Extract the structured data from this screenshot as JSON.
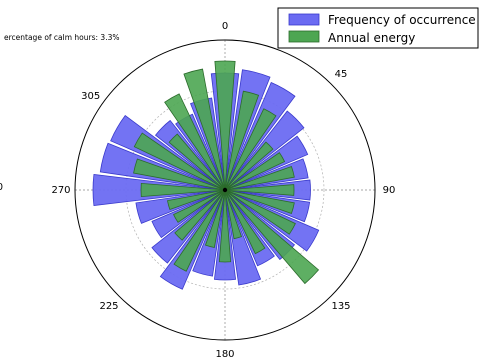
{
  "chart_data": {
    "type": "polar-bar",
    "note_text": "ercentage of calm hours: 3.3%",
    "left_edge_fragment": "0",
    "angle_ticks": [
      {
        "deg": 0,
        "label": "0"
      },
      {
        "deg": 45,
        "label": "45"
      },
      {
        "deg": 90,
        "label": "90"
      },
      {
        "deg": 135,
        "label": "135"
      },
      {
        "deg": 180,
        "label": "180"
      },
      {
        "deg": 225,
        "label": "225"
      },
      {
        "deg": 270,
        "label": "270"
      },
      {
        "deg": 305,
        "label": "305"
      }
    ],
    "sector_count": 24,
    "sector_step_deg": 15,
    "rmax": 1.0,
    "grid_rings": [
      0.33,
      0.66
    ],
    "grid": true,
    "legend_position": "top-right",
    "series": [
      {
        "name": "Frequency of occurrence",
        "color": "#6b6bf2",
        "edge": "#3a3acc",
        "width_deg": 13.5,
        "values": [
          0.78,
          0.81,
          0.78,
          0.67,
          0.6,
          0.56,
          0.57,
          0.57,
          0.68,
          0.59,
          0.55,
          0.64,
          0.6,
          0.58,
          0.72,
          0.62,
          0.53,
          0.6,
          0.88,
          0.84,
          0.83,
          0.59,
          0.55,
          0.62
        ]
      },
      {
        "name": "Annual energy",
        "color": "#4da652",
        "edge": "#2b6b2b",
        "width_deg": 9,
        "values": [
          0.86,
          0.67,
          0.6,
          0.42,
          0.44,
          0.47,
          0.46,
          0.47,
          0.52,
          0.82,
          0.47,
          0.33,
          0.48,
          0.39,
          0.6,
          0.44,
          0.38,
          0.39,
          0.56,
          0.62,
          0.67,
          0.49,
          0.71,
          0.82
        ]
      }
    ]
  }
}
